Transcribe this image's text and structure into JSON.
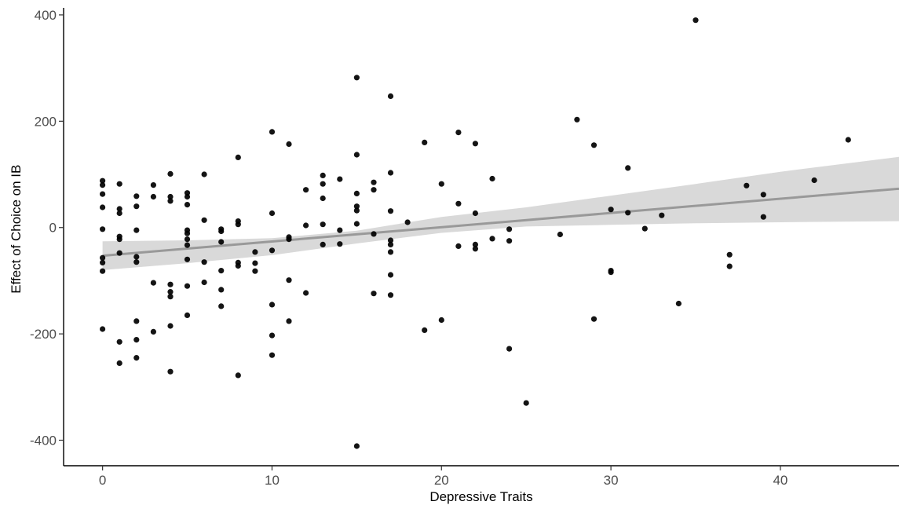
{
  "chart_data": {
    "type": "scatter",
    "xlabel": "Depressive Traits",
    "ylabel": "Effect of Choice on IB",
    "xlim": [
      -2.3,
      47
    ],
    "ylim": [
      -448,
      428
    ],
    "xticks": [
      0,
      10,
      20,
      30,
      40
    ],
    "yticks": [
      -400,
      -200,
      0,
      200,
      400
    ],
    "xtick_labels": [
      "0",
      "10",
      "20",
      "30",
      "40"
    ],
    "ytick_labels": [
      "-400",
      "-200",
      "0",
      "200",
      "400"
    ],
    "grid": false,
    "legend": "none",
    "colors": {
      "points": "#000000",
      "trend_line": "#999999",
      "confidence_band": "#d9d9d9",
      "axis": "#000000",
      "tick_label": "#4d4d4d"
    },
    "points": [
      [
        0,
        88
      ],
      [
        0,
        80
      ],
      [
        0,
        63
      ],
      [
        0,
        38
      ],
      [
        0,
        -3
      ],
      [
        0,
        -57
      ],
      [
        0,
        -66
      ],
      [
        0,
        -82
      ],
      [
        0,
        -191
      ],
      [
        1,
        82
      ],
      [
        1,
        35
      ],
      [
        1,
        27
      ],
      [
        1,
        -17
      ],
      [
        1,
        -22
      ],
      [
        1,
        -48
      ],
      [
        1,
        -215
      ],
      [
        1,
        -255
      ],
      [
        2,
        59
      ],
      [
        2,
        40
      ],
      [
        2,
        -5
      ],
      [
        2,
        -55
      ],
      [
        2,
        -65
      ],
      [
        2,
        -176
      ],
      [
        2,
        -211
      ],
      [
        2,
        -245
      ],
      [
        3,
        80
      ],
      [
        3,
        58
      ],
      [
        3,
        -104
      ],
      [
        3,
        -196
      ],
      [
        4,
        101
      ],
      [
        4,
        58
      ],
      [
        4,
        50
      ],
      [
        4,
        -107
      ],
      [
        4,
        -121
      ],
      [
        4,
        -130
      ],
      [
        4,
        -185
      ],
      [
        4,
        -271
      ],
      [
        5,
        65
      ],
      [
        5,
        58
      ],
      [
        5,
        43
      ],
      [
        5,
        -5
      ],
      [
        5,
        -11
      ],
      [
        5,
        -22
      ],
      [
        5,
        -33
      ],
      [
        5,
        -60
      ],
      [
        5,
        -110
      ],
      [
        5,
        -165
      ],
      [
        6,
        100
      ],
      [
        6,
        14
      ],
      [
        6,
        -65
      ],
      [
        6,
        -103
      ],
      [
        7,
        -3
      ],
      [
        7,
        -7
      ],
      [
        7,
        -27
      ],
      [
        7,
        -81
      ],
      [
        7,
        -117
      ],
      [
        7,
        -148
      ],
      [
        8,
        132
      ],
      [
        8,
        12
      ],
      [
        8,
        6
      ],
      [
        8,
        -66
      ],
      [
        8,
        -72
      ],
      [
        8,
        -278
      ],
      [
        9,
        -46
      ],
      [
        9,
        -67
      ],
      [
        9,
        -82
      ],
      [
        10,
        180
      ],
      [
        10,
        27
      ],
      [
        10,
        -43
      ],
      [
        10,
        -145
      ],
      [
        10,
        -203
      ],
      [
        10,
        -240
      ],
      [
        11,
        157
      ],
      [
        11,
        -18
      ],
      [
        11,
        -22
      ],
      [
        11,
        -99
      ],
      [
        11,
        -176
      ],
      [
        12,
        71
      ],
      [
        12,
        4
      ],
      [
        12,
        -123
      ],
      [
        13,
        98
      ],
      [
        13,
        82
      ],
      [
        13,
        55
      ],
      [
        13,
        6
      ],
      [
        13,
        -32
      ],
      [
        14,
        91
      ],
      [
        14,
        -5
      ],
      [
        14,
        -31
      ],
      [
        15,
        282
      ],
      [
        15,
        137
      ],
      [
        15,
        64
      ],
      [
        15,
        40
      ],
      [
        15,
        32
      ],
      [
        15,
        7
      ],
      [
        15,
        -411
      ],
      [
        16,
        85
      ],
      [
        16,
        71
      ],
      [
        16,
        -12
      ],
      [
        16,
        -124
      ],
      [
        17,
        247
      ],
      [
        17,
        103
      ],
      [
        17,
        31
      ],
      [
        17,
        -24
      ],
      [
        17,
        -32
      ],
      [
        17,
        -46
      ],
      [
        17,
        -89
      ],
      [
        17,
        -127
      ],
      [
        18,
        10
      ],
      [
        19,
        160
      ],
      [
        19,
        -193
      ],
      [
        20,
        82
      ],
      [
        20,
        -174
      ],
      [
        21,
        179
      ],
      [
        21,
        45
      ],
      [
        21,
        -35
      ],
      [
        22,
        158
      ],
      [
        22,
        27
      ],
      [
        22,
        -32
      ],
      [
        22,
        -40
      ],
      [
        23,
        92
      ],
      [
        23,
        -21
      ],
      [
        24,
        -3
      ],
      [
        24,
        -25
      ],
      [
        24,
        -228
      ],
      [
        25,
        -330
      ],
      [
        27,
        -13
      ],
      [
        28,
        203
      ],
      [
        29,
        155
      ],
      [
        29,
        -172
      ],
      [
        30,
        34
      ],
      [
        30,
        -81
      ],
      [
        30,
        -84
      ],
      [
        31,
        112
      ],
      [
        31,
        28
      ],
      [
        32,
        -2
      ],
      [
        33,
        23
      ],
      [
        34,
        -143
      ],
      [
        35,
        390
      ],
      [
        37,
        -51
      ],
      [
        37,
        -73
      ],
      [
        38,
        79
      ],
      [
        39,
        62
      ],
      [
        39,
        20
      ],
      [
        42,
        89
      ],
      [
        44,
        165
      ]
    ],
    "trend": {
      "x": [
        0,
        47
      ],
      "y": [
        -53,
        73
      ]
    },
    "confidence_band": {
      "x": [
        0,
        5,
        10,
        15,
        20,
        25,
        30,
        35,
        40,
        47
      ],
      "lower": [
        -80,
        -67,
        -52,
        -30,
        -10,
        2,
        5,
        8,
        10,
        12
      ],
      "upper": [
        -26,
        -24,
        -20,
        -6,
        20,
        38,
        60,
        82,
        105,
        133
      ]
    }
  }
}
